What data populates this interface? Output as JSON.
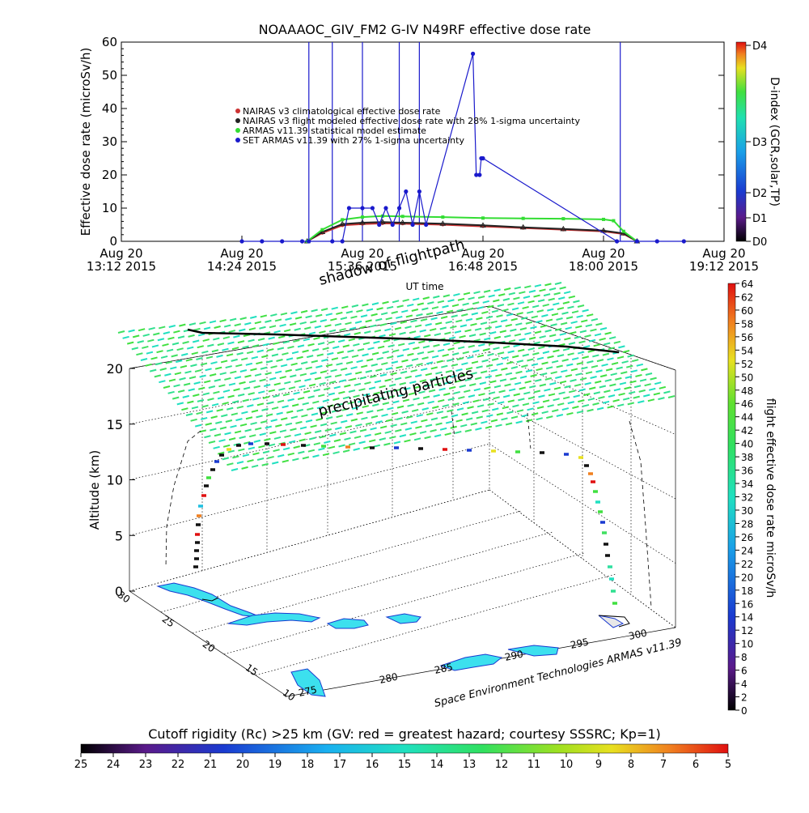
{
  "chart_data": [
    {
      "type": "line",
      "title": "NOAAAOC_GIV_FM2 G-IV   N49RF  effective dose rate",
      "ylabel": "Effective dose rate (microSv/h)",
      "xlabel": "UT time",
      "ylim": [
        0,
        60
      ],
      "yticks": [
        "0",
        "10",
        "20",
        "30",
        "40",
        "50",
        "60"
      ],
      "xticks": [
        {
          "line1": "Aug 20",
          "line2": "13:12 2015"
        },
        {
          "line1": "Aug 20",
          "line2": "14:24 2015"
        },
        {
          "line1": "Aug 20",
          "line2": "15:36 2015"
        },
        {
          "line1": "Aug 20",
          "line2": "16:48 2015"
        },
        {
          "line1": "Aug 20",
          "line2": "18:00 2015"
        },
        {
          "line1": "Aug 20",
          "line2": "19:12 2015"
        }
      ],
      "xlim": [
        "13:12",
        "19:12"
      ],
      "legend": [
        {
          "label": "NAIRAS v3 climatological effective dose rate",
          "color": "#cc3333"
        },
        {
          "label": "NAIRAS v3 flight modeled effective dose rate with 28% 1-sigma uncertainty",
          "color": "#222222"
        },
        {
          "label": "ARMAS v11.39 statistical model estimate",
          "color": "#33dd33"
        },
        {
          "label": "SET ARMAS v11.39 with 27% 1-sigma uncertainty",
          "color": "#1a1acc"
        }
      ],
      "legend_position": "upper-left",
      "series": [
        {
          "name": "NAIRAS v3 climatological effective dose rate",
          "color": "#cc3333",
          "x": [
            "15:03",
            "15:12",
            "15:24",
            "15:36",
            "15:48",
            "16:00",
            "16:24",
            "16:48",
            "17:12",
            "17:36",
            "18:00",
            "18:12",
            "18:20"
          ],
          "y": [
            0,
            2.5,
            4.8,
            5.2,
            5.4,
            5.3,
            5.0,
            4.5,
            4.0,
            3.5,
            3.0,
            2.2,
            0
          ]
        },
        {
          "name": "NAIRAS v3 flight modeled effective dose rate with 28% 1-sigma uncertainty",
          "color": "#222222",
          "x": [
            "15:03",
            "15:12",
            "15:24",
            "15:36",
            "15:48",
            "16:00",
            "16:24",
            "16:48",
            "17:12",
            "17:36",
            "18:00",
            "18:12",
            "18:20"
          ],
          "y": [
            0,
            2.8,
            5.2,
            5.6,
            5.8,
            5.6,
            5.3,
            4.8,
            4.2,
            3.7,
            3.2,
            2.4,
            0
          ]
        },
        {
          "name": "ARMAS v11.39 statistical model estimate",
          "color": "#33dd33",
          "x": [
            "15:03",
            "15:12",
            "15:24",
            "15:36",
            "15:48",
            "16:00",
            "16:24",
            "16:48",
            "17:12",
            "17:36",
            "18:00",
            "18:06",
            "18:12",
            "18:20"
          ],
          "y": [
            0,
            3.5,
            6.5,
            7.3,
            7.6,
            7.5,
            7.3,
            7.0,
            6.9,
            6.8,
            6.6,
            6.2,
            3.0,
            0
          ]
        },
        {
          "name": "SET ARMAS v11.39 with 27% 1-sigma uncertainty",
          "color": "#1a1acc",
          "x": [
            "14:24",
            "14:36",
            "14:48",
            "15:00",
            "15:04",
            "15:18",
            "15:24",
            "15:28",
            "15:36",
            "15:42",
            "15:46",
            "15:50",
            "15:54",
            "15:58",
            "16:02",
            "16:06",
            "16:10",
            "16:14",
            "16:42",
            "16:44",
            "16:46",
            "16:47",
            "16:48",
            "18:08",
            "18:20",
            "18:32",
            "18:48"
          ],
          "y": [
            0,
            0,
            0,
            0,
            0,
            0,
            0,
            10,
            10,
            10,
            5,
            10,
            5,
            10,
            15,
            5,
            15,
            5,
            56.5,
            20,
            20,
            25,
            25,
            0,
            0,
            0,
            0
          ]
        }
      ],
      "spikes_x": [
        "15:04",
        "15:18",
        "15:36",
        "15:58",
        "16:10",
        "18:10"
      ],
      "colorbar": {
        "label": "D-index (GCR,solar,TP)",
        "ticks": [
          "D0",
          "D1",
          "D2",
          "D3",
          "D4"
        ]
      }
    },
    {
      "type": "scatter",
      "title": "",
      "zlabel": "Altitude (km)",
      "zticks": [
        "0",
        "5",
        "10",
        "15",
        "20"
      ],
      "lat_ticks": [
        "10",
        "15",
        "20",
        "25",
        "30"
      ],
      "lon_ticks": [
        "275",
        "280",
        "285",
        "290",
        "295",
        "300"
      ],
      "annotations": [
        "shadow of flightpath",
        "precipitating particles"
      ],
      "credit": "Space Environment Technologies ARMAS v11.39",
      "colorbar": {
        "label": "flight effective dose rate microSv/h",
        "range": [
          0,
          64
        ],
        "ticks": [
          "0",
          "2",
          "4",
          "6",
          "8",
          "10",
          "12",
          "14",
          "16",
          "18",
          "20",
          "22",
          "24",
          "26",
          "28",
          "30",
          "32",
          "34",
          "36",
          "38",
          "40",
          "42",
          "44",
          "46",
          "48",
          "50",
          "52",
          "54",
          "56",
          "58",
          "60",
          "62",
          "64"
        ]
      },
      "flight_profile": {
        "x_lon": [
          278.9,
          279.3,
          279.6,
          280.0,
          280.5,
          282.0,
          285.0,
          288.0,
          291.0,
          293.5,
          295.0,
          295.3,
          295.5,
          295.6
        ],
        "altitude_km": [
          0,
          4,
          8,
          11.5,
          13.2,
          13.5,
          13.3,
          13.1,
          12.9,
          12.6,
          12.0,
          9.0,
          4.0,
          0.5
        ]
      }
    },
    {
      "type": "heatmap",
      "title": "Cutoff rigidity (Rc) >25 km (GV: red = greatest hazard; courtesy SSSRC; Kp=1)",
      "ticks": [
        "25",
        "24",
        "23",
        "22",
        "21",
        "20",
        "19",
        "18",
        "17",
        "16",
        "15",
        "14",
        "13",
        "12",
        "11",
        "10",
        "9",
        "8",
        "7",
        "6",
        "5"
      ],
      "range": [
        25,
        5
      ]
    }
  ]
}
